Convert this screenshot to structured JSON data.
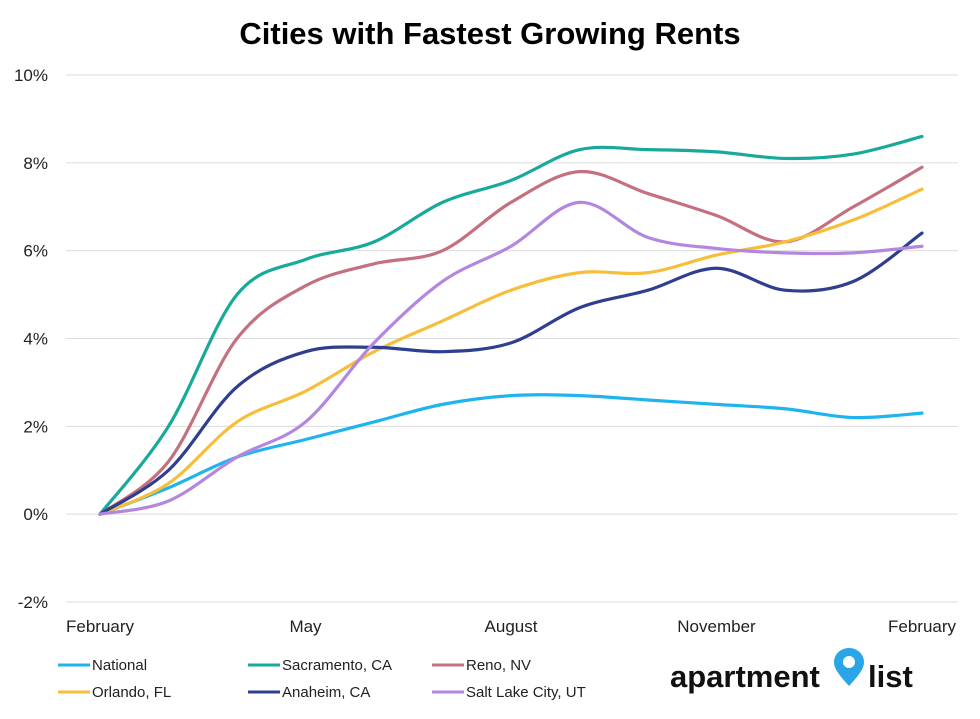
{
  "chart_data": {
    "type": "line",
    "title": "Cities with Fastest Growing Rents",
    "xlabel": "",
    "ylabel": "",
    "x_tick_labels": [
      "February",
      "May",
      "August",
      "November",
      "February"
    ],
    "y_tick_labels": [
      "10%",
      "8%",
      "6%",
      "4%",
      "2%",
      "0%",
      "-2%"
    ],
    "y_ticks": [
      10,
      8,
      6,
      4,
      2,
      0,
      -2
    ],
    "ylim": [
      -2,
      10
    ],
    "grid": true,
    "legend_position": "bottom",
    "series": [
      {
        "name": "National",
        "color": "#1FB4F0",
        "values": [
          0,
          0.6,
          1.3,
          1.7,
          2.1,
          2.5,
          2.7,
          2.7,
          2.6,
          2.5,
          2.4,
          2.2,
          2.3
        ]
      },
      {
        "name": "Sacramento, CA",
        "color": "#17A99A",
        "values": [
          0,
          2.0,
          5.0,
          5.8,
          6.2,
          7.1,
          7.6,
          8.3,
          8.3,
          8.25,
          8.1,
          8.2,
          8.6
        ]
      },
      {
        "name": "Reno, NV",
        "color": "#C4707F",
        "values": [
          0,
          1.2,
          4.0,
          5.2,
          5.7,
          6.0,
          7.1,
          7.8,
          7.3,
          6.8,
          6.2,
          7.0,
          7.9
        ]
      },
      {
        "name": "Orlando, FL",
        "color": "#F7BE3A",
        "values": [
          0,
          0.7,
          2.1,
          2.8,
          3.7,
          4.4,
          5.1,
          5.5,
          5.5,
          5.9,
          6.2,
          6.7,
          7.4
        ]
      },
      {
        "name": "Anaheim, CA",
        "color": "#2F3F8F",
        "values": [
          0,
          1.0,
          2.9,
          3.7,
          3.8,
          3.7,
          3.9,
          4.7,
          5.1,
          5.6,
          5.1,
          5.3,
          6.4
        ]
      },
      {
        "name": "Salt Lake City, UT",
        "color": "#B386E0",
        "values": [
          0,
          0.3,
          1.3,
          2.1,
          3.9,
          5.3,
          6.1,
          7.1,
          6.3,
          6.05,
          5.95,
          5.95,
          6.1
        ]
      }
    ]
  },
  "brand": {
    "word1": "apartment",
    "word2": "list",
    "pin_color": "#2AA5E8"
  }
}
